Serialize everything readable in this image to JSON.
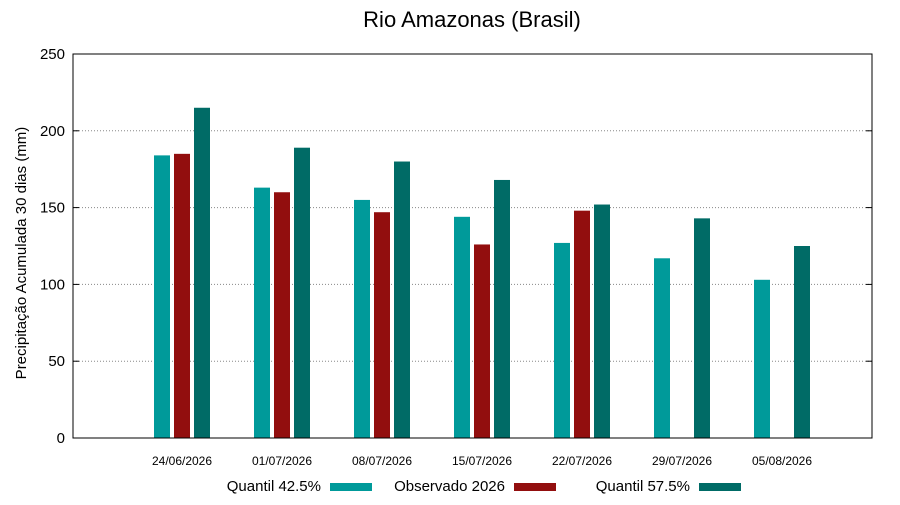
{
  "chart_data": {
    "type": "bar",
    "title": "Rio Amazonas (Brasil)",
    "xlabel": "",
    "ylabel": "Precipitação Acumulada 30 dias (mm)",
    "ylim": [
      0,
      250
    ],
    "yticks": [
      0,
      50,
      100,
      150,
      200,
      250
    ],
    "grid": "horizontal dotted",
    "legend_position": "bottom",
    "categories": [
      "24/06/2026",
      "01/07/2026",
      "08/07/2026",
      "15/07/2026",
      "22/07/2026",
      "29/07/2026",
      "05/08/2026"
    ],
    "series": [
      {
        "name": "Quantil 42.5%",
        "color": "#009a9a",
        "values": [
          184,
          163,
          155,
          144,
          127,
          117,
          103
        ]
      },
      {
        "name": "Observado 2026",
        "color": "#920e0e",
        "values": [
          185,
          160,
          147,
          126,
          148,
          null,
          null
        ]
      },
      {
        "name": "Quantil 57.5%",
        "color": "#006b66",
        "values": [
          215,
          189,
          180,
          168,
          152,
          143,
          125
        ]
      }
    ]
  }
}
